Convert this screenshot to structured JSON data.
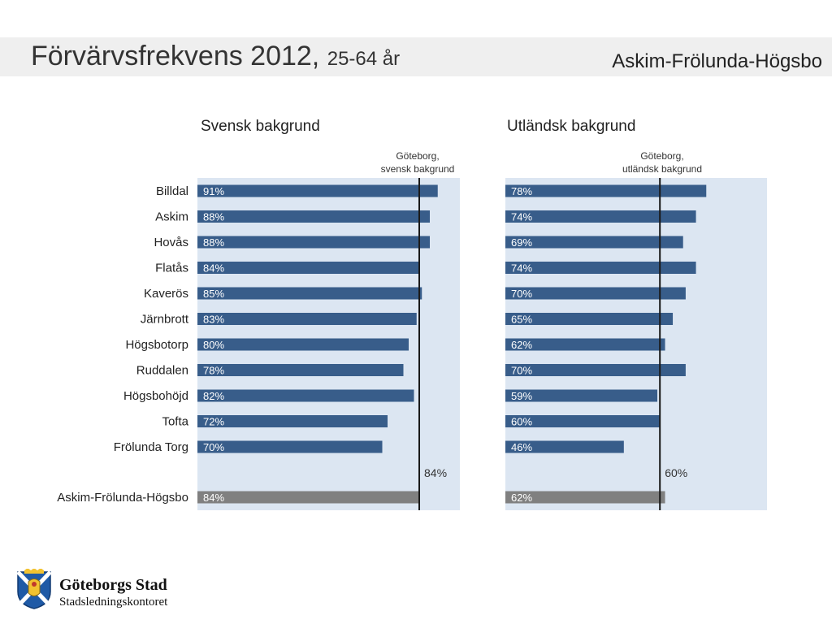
{
  "header": {
    "title": "Förvärvsfrekvens 2012,",
    "subtitle": "25-64 år",
    "region": "Askim-Frölunda-Högsbo"
  },
  "chart_data": [
    {
      "type": "bar",
      "title": "Svensk bakgrund",
      "reference_label": [
        "Göteborg,",
        "svensk bakgrund"
      ],
      "reference_value": 84,
      "reference_value_label": "84%",
      "categories": [
        "Billdal",
        "Askim",
        "Hovås",
        "Flatås",
        "Kaverös",
        "Järnbrott",
        "Högsbotorp",
        "Ruddalen",
        "Högsbohöjd",
        "Tofta",
        "Frölunda Torg"
      ],
      "values": [
        91,
        88,
        88,
        84,
        85,
        83,
        80,
        78,
        82,
        72,
        70
      ],
      "value_labels": [
        "91%",
        "88%",
        "88%",
        "84%",
        "85%",
        "83%",
        "80%",
        "78%",
        "82%",
        "72%",
        "70%"
      ],
      "total_category": "Askim-Frölunda-Högsbo",
      "total_value": 84,
      "total_label": "84%",
      "bar_color": "#385d8a",
      "total_bar_color": "#808080",
      "bg_color": "#dce6f2"
    },
    {
      "type": "bar",
      "title": "Utländsk bakgrund",
      "reference_label": [
        "Göteborg,",
        "utländsk bakgrund"
      ],
      "reference_value": 60,
      "reference_value_label": "60%",
      "categories": [
        "Billdal",
        "Askim",
        "Hovås",
        "Flatås",
        "Kaverös",
        "Järnbrott",
        "Högsbotorp",
        "Ruddalen",
        "Högsbohöjd",
        "Tofta",
        "Frölunda Torg"
      ],
      "values": [
        78,
        74,
        69,
        74,
        70,
        65,
        62,
        70,
        59,
        60,
        46
      ],
      "value_labels": [
        "78%",
        "74%",
        "69%",
        "74%",
        "70%",
        "65%",
        "62%",
        "70%",
        "59%",
        "60%",
        "46%"
      ],
      "total_category": "Askim-Frölunda-Högsbo",
      "total_value": 62,
      "total_label": "62%",
      "bar_color": "#385d8a",
      "total_bar_color": "#808080",
      "bg_color": "#dce6f2"
    }
  ],
  "logo": {
    "name": "Göteborgs Stad",
    "department": "Stadsledningskontoret"
  }
}
